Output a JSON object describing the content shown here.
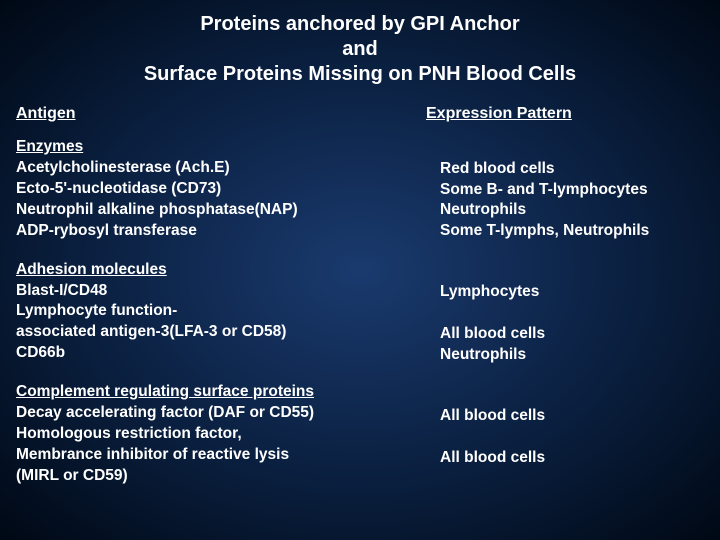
{
  "title_line1": "Proteins anchored by GPI Anchor",
  "title_line2": "and",
  "title_line3": "Surface Proteins Missing on PNH Blood Cells",
  "headers": {
    "antigen": "Antigen",
    "expression": "Expression Pattern"
  },
  "sections": [
    {
      "heading": "Enzymes",
      "rows": [
        {
          "antigen": "Acetylcholinesterase (Ach.E)",
          "expression": "Red blood cells"
        },
        {
          "antigen": "Ecto-5'-nucleotidase (CD73)",
          "expression": "Some B- and T-lymphocytes"
        },
        {
          "antigen": "Neutrophil alkaline phosphatase(NAP)",
          "expression": "Neutrophils"
        },
        {
          "antigen": "ADP-rybosyl transferase",
          "expression": "Some T-lymphs, Neutrophils"
        }
      ]
    },
    {
      "heading": "Adhesion molecules",
      "rows": [
        {
          "antigen": "Blast-I/CD48",
          "expression": "Lymphocytes"
        },
        {
          "antigen": "Lymphocyte function-",
          "expression": ""
        },
        {
          "antigen": "associated antigen-3(LFA-3 or CD58)",
          "expression": "All blood cells"
        },
        {
          "antigen": "CD66b",
          "expression": "Neutrophils"
        }
      ]
    },
    {
      "heading": "Complement regulating surface proteins",
      "rows": [
        {
          "antigen": "Decay accelerating factor (DAF or CD55)",
          "expression": "All blood cells"
        },
        {
          "antigen": "Homologous restriction factor,",
          "expression": ""
        },
        {
          "antigen": "Membrance inhibitor of reactive lysis",
          "expression": "All blood cells"
        },
        {
          "antigen": "(MIRL or CD59)",
          "expression": ""
        }
      ]
    }
  ]
}
